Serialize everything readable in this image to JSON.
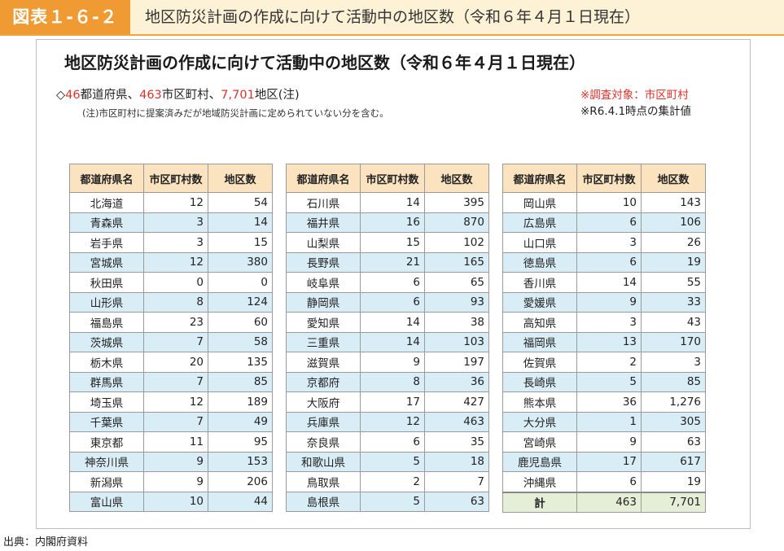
{
  "figure": {
    "label": "図表１-６-２",
    "title": "地区防災計画の作成に向けて活動中の地区数（令和６年４月１日現在）"
  },
  "main_title": "地区防災計画の作成に向けて活動中の地区数（令和６年４月１日現在）",
  "summary": {
    "prefix": "◇",
    "pref_count": "46",
    "pref_text": "都道府県、",
    "muni_count": "463",
    "muni_text": "市区町村、",
    "district_count": "7,701",
    "district_text": "地区(注)"
  },
  "note": "(注)市区町村に提案済みだが地域防災計画に定められていない分を含む。",
  "side_notes": {
    "survey_target": "※調査対象：市区町村",
    "as_of": "※R6.4.1時点の集計値"
  },
  "headers": [
    "都道府県名",
    "市区町村数",
    "地区数"
  ],
  "table1": [
    [
      "北海道",
      "12",
      "54"
    ],
    [
      "青森県",
      "3",
      "14"
    ],
    [
      "岩手県",
      "3",
      "15"
    ],
    [
      "宮城県",
      "12",
      "380"
    ],
    [
      "秋田県",
      "0",
      "0"
    ],
    [
      "山形県",
      "8",
      "124"
    ],
    [
      "福島県",
      "23",
      "60"
    ],
    [
      "茨城県",
      "7",
      "58"
    ],
    [
      "栃木県",
      "20",
      "135"
    ],
    [
      "群馬県",
      "7",
      "85"
    ],
    [
      "埼玉県",
      "12",
      "189"
    ],
    [
      "千葉県",
      "7",
      "49"
    ],
    [
      "東京都",
      "11",
      "95"
    ],
    [
      "神奈川県",
      "9",
      "153"
    ],
    [
      "新潟県",
      "9",
      "206"
    ],
    [
      "富山県",
      "10",
      "44"
    ]
  ],
  "table2": [
    [
      "石川県",
      "14",
      "395"
    ],
    [
      "福井県",
      "16",
      "870"
    ],
    [
      "山梨県",
      "15",
      "102"
    ],
    [
      "長野県",
      "21",
      "165"
    ],
    [
      "岐阜県",
      "6",
      "65"
    ],
    [
      "静岡県",
      "6",
      "93"
    ],
    [
      "愛知県",
      "14",
      "38"
    ],
    [
      "三重県",
      "14",
      "103"
    ],
    [
      "滋賀県",
      "9",
      "197"
    ],
    [
      "京都府",
      "8",
      "36"
    ],
    [
      "大阪府",
      "17",
      "427"
    ],
    [
      "兵庫県",
      "12",
      "463"
    ],
    [
      "奈良県",
      "6",
      "35"
    ],
    [
      "和歌山県",
      "5",
      "18"
    ],
    [
      "鳥取県",
      "2",
      "7"
    ],
    [
      "島根県",
      "5",
      "63"
    ]
  ],
  "table3": [
    [
      "岡山県",
      "10",
      "143"
    ],
    [
      "広島県",
      "6",
      "106"
    ],
    [
      "山口県",
      "3",
      "26"
    ],
    [
      "徳島県",
      "6",
      "19"
    ],
    [
      "香川県",
      "14",
      "55"
    ],
    [
      "愛媛県",
      "9",
      "33"
    ],
    [
      "高知県",
      "3",
      "43"
    ],
    [
      "福岡県",
      "13",
      "170"
    ],
    [
      "佐賀県",
      "2",
      "3"
    ],
    [
      "長崎県",
      "5",
      "85"
    ],
    [
      "熊本県",
      "36",
      "1,276"
    ],
    [
      "大分県",
      "1",
      "305"
    ],
    [
      "宮崎県",
      "9",
      "63"
    ],
    [
      "鹿児島県",
      "17",
      "617"
    ],
    [
      "沖縄県",
      "6",
      "19"
    ],
    [
      "計",
      "463",
      "7,701"
    ]
  ],
  "source": "出典：内閣府資料"
}
